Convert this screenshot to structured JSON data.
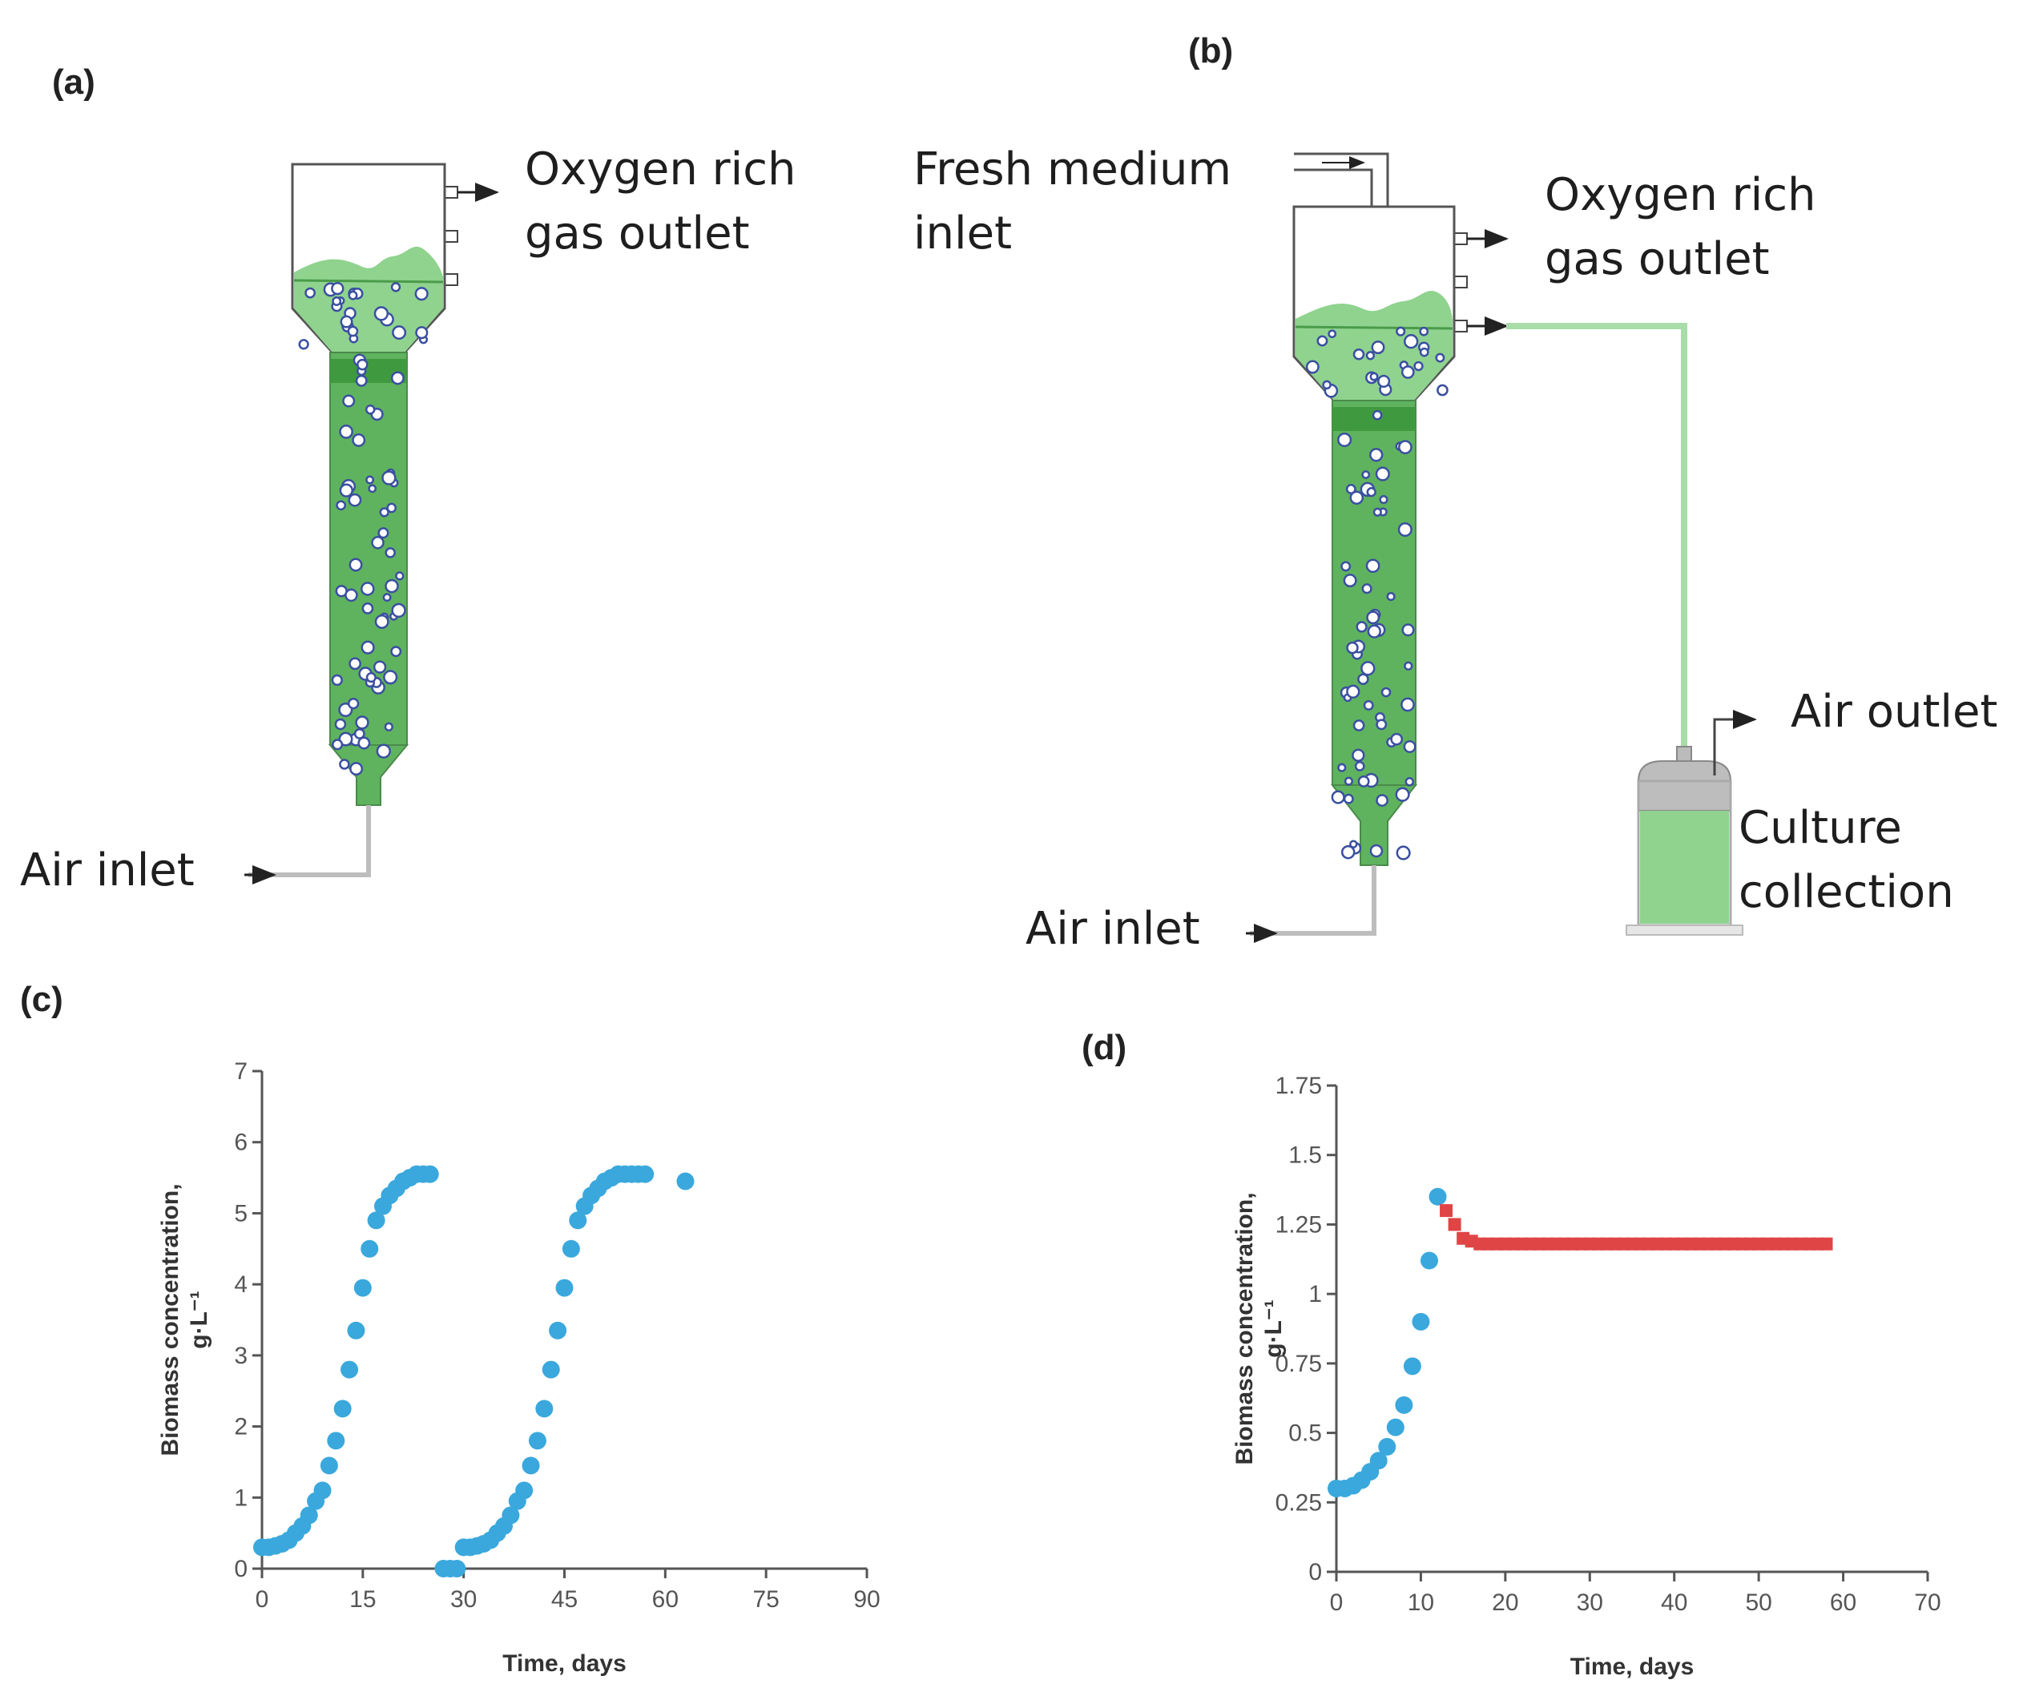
{
  "panels": {
    "a": {
      "label": "(a)",
      "gas_outlet_label": [
        "Oxygen rich",
        "gas outlet"
      ],
      "air_inlet_label": "Air inlet"
    },
    "b": {
      "label": "(b)",
      "medium_inlet_label": [
        "Fresh medium",
        "inlet"
      ],
      "gas_outlet_label": [
        "Oxygen rich",
        "gas outlet"
      ],
      "air_inlet_label": "Air inlet",
      "air_outlet_label": "Air outlet",
      "collection_label": [
        "Culture",
        "collection"
      ]
    },
    "c": {
      "label": "(c)"
    },
    "d": {
      "label": "(d)"
    }
  },
  "colors": {
    "culture_green": "#5fb35f",
    "culture_light": "#8fd38f",
    "bubble": "#3a4fa0",
    "batch_points": "#3aa8dc",
    "continuous_points": "#e04545",
    "axis": "#555555"
  },
  "chart_data": [
    {
      "type": "scatter",
      "xlabel": "Time, days",
      "ylabel": [
        "Biomass concentration,",
        "g·L⁻¹"
      ],
      "xlim": [
        0,
        90
      ],
      "ylim": [
        0,
        7
      ],
      "xticks": [
        0,
        15,
        30,
        45,
        60,
        75,
        90
      ],
      "yticks": [
        0,
        1,
        2,
        3,
        4,
        5,
        6,
        7
      ],
      "grid": false,
      "series": [
        {
          "marker": "circle",
          "color": "#3aa8dc",
          "x": [
            0,
            1,
            2,
            3,
            4,
            5,
            6,
            7,
            8,
            9,
            10,
            11,
            12,
            13,
            14,
            15,
            16,
            17,
            18,
            19,
            20,
            21,
            22,
            23,
            24,
            25,
            27,
            28,
            29,
            30,
            31,
            32,
            33,
            34,
            35,
            36,
            37,
            38,
            39,
            40,
            41,
            42,
            43,
            44,
            45,
            46,
            47,
            48,
            49,
            50,
            51,
            52,
            53,
            54,
            55,
            56,
            57,
            63
          ],
          "y": [
            0.3,
            0.3,
            0.32,
            0.35,
            0.4,
            0.5,
            0.6,
            0.75,
            0.95,
            1.1,
            1.45,
            1.8,
            2.25,
            2.8,
            3.35,
            3.95,
            4.5,
            4.9,
            5.1,
            5.25,
            5.35,
            5.45,
            5.5,
            5.55,
            5.55,
            5.55,
            0.0,
            0.0,
            0.0,
            0.3,
            0.3,
            0.32,
            0.35,
            0.4,
            0.5,
            0.6,
            0.75,
            0.95,
            1.1,
            1.45,
            1.8,
            2.25,
            2.8,
            3.35,
            3.95,
            4.5,
            4.9,
            5.1,
            5.25,
            5.35,
            5.45,
            5.5,
            5.55,
            5.55,
            5.55,
            5.55,
            5.55,
            5.45
          ]
        }
      ]
    },
    {
      "type": "scatter",
      "xlabel": "Time, days",
      "ylabel": [
        "Biomass concentration,",
        "g·L⁻¹"
      ],
      "xlim": [
        0,
        70
      ],
      "ylim": [
        0,
        1.75
      ],
      "xticks": [
        0,
        10,
        20,
        30,
        40,
        50,
        60,
        70
      ],
      "yticks": [
        0,
        0.25,
        0.5,
        0.75,
        1,
        1.25,
        1.5,
        1.75
      ],
      "grid": false,
      "series": [
        {
          "marker": "circle",
          "color": "#3aa8dc",
          "x": [
            0,
            1,
            2,
            3,
            4,
            5,
            6,
            7,
            8,
            9,
            10,
            11,
            12
          ],
          "y": [
            0.3,
            0.3,
            0.31,
            0.33,
            0.36,
            0.4,
            0.45,
            0.52,
            0.6,
            0.74,
            0.9,
            1.12,
            1.35
          ]
        },
        {
          "marker": "square",
          "color": "#e04545",
          "x": [
            13,
            14,
            15,
            16,
            17,
            18,
            19,
            20,
            21,
            22,
            23,
            24,
            25,
            26,
            27,
            28,
            29,
            30,
            31,
            32,
            33,
            34,
            35,
            36,
            37,
            38,
            39,
            40,
            41,
            42,
            43,
            44,
            45,
            46,
            47,
            48,
            49,
            50,
            51,
            52,
            53,
            54,
            55,
            56,
            57,
            58
          ],
          "y": [
            1.3,
            1.25,
            1.2,
            1.19,
            1.18,
            1.18,
            1.18,
            1.18,
            1.18,
            1.18,
            1.18,
            1.18,
            1.18,
            1.18,
            1.18,
            1.18,
            1.18,
            1.18,
            1.18,
            1.18,
            1.18,
            1.18,
            1.18,
            1.18,
            1.18,
            1.18,
            1.18,
            1.18,
            1.18,
            1.18,
            1.18,
            1.18,
            1.18,
            1.18,
            1.18,
            1.18,
            1.18,
            1.18,
            1.18,
            1.18,
            1.18,
            1.18,
            1.18,
            1.18,
            1.18,
            1.18
          ]
        }
      ]
    }
  ]
}
